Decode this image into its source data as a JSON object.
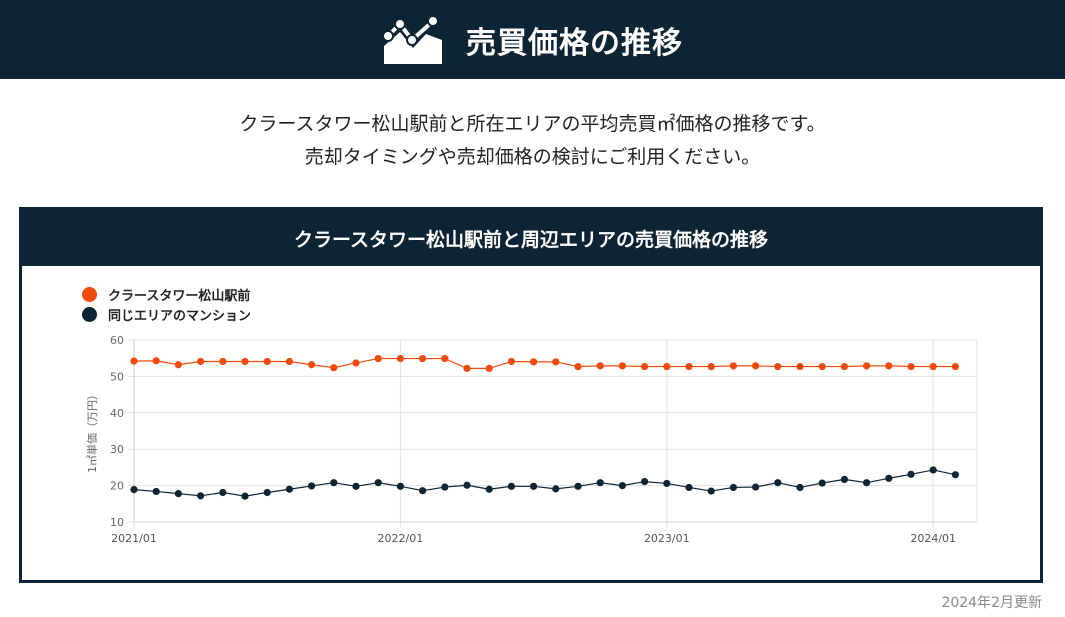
{
  "header": {
    "title": "売買価格の推移"
  },
  "intro": {
    "line1": "クラースタワー松山駅前と所在エリアの平均売買㎡価格の推移です。",
    "line2": "売却タイミングや売却価格の検討にご利用ください。"
  },
  "card": {
    "title": "クラースタワー松山駅前と周辺エリアの売買価格の推移"
  },
  "updated": "2024年2月更新",
  "colors": {
    "navy": "#0c2433",
    "orange": "#f04b0c",
    "grid": "#e2e2e2"
  },
  "chart_data": {
    "type": "line",
    "ylabel": "1㎡単価（万円）",
    "ylim": [
      10,
      60
    ],
    "yticks": [
      10,
      20,
      30,
      40,
      50,
      60
    ],
    "xtick_labels": [
      "2021/01",
      "2022/01",
      "2023/01",
      "2024/01"
    ],
    "x": [
      "2021/01",
      "2021/02",
      "2021/03",
      "2021/04",
      "2021/05",
      "2021/06",
      "2021/07",
      "2021/08",
      "2021/09",
      "2021/10",
      "2021/11",
      "2021/12",
      "2022/01",
      "2022/02",
      "2022/03",
      "2022/04",
      "2022/05",
      "2022/06",
      "2022/07",
      "2022/08",
      "2022/09",
      "2022/10",
      "2022/11",
      "2022/12",
      "2023/01",
      "2023/02",
      "2023/03",
      "2023/04",
      "2023/05",
      "2023/06",
      "2023/07",
      "2023/08",
      "2023/09",
      "2023/10",
      "2023/11",
      "2023/12",
      "2024/01",
      "2024/02"
    ],
    "legend_position": "top-left",
    "grid": true,
    "series": [
      {
        "name": "クラースタワー松山駅前",
        "color": "#f04b0c",
        "values": [
          54.2,
          54.3,
          53.2,
          54.1,
          54.1,
          54.1,
          54.1,
          54.1,
          53.2,
          52.4,
          53.7,
          54.9,
          54.9,
          54.9,
          54.9,
          52.2,
          52.2,
          54.1,
          54.0,
          54.0,
          52.7,
          52.9,
          52.9,
          52.7,
          52.7,
          52.7,
          52.7,
          52.9,
          52.9,
          52.7,
          52.7,
          52.7,
          52.7,
          52.9,
          52.9,
          52.7,
          52.7,
          52.7
        ]
      },
      {
        "name": "同じエリアのマンション",
        "color": "#0c2433",
        "values": [
          18.9,
          18.4,
          17.8,
          17.2,
          18.1,
          17.1,
          18.1,
          19.0,
          19.9,
          20.8,
          19.8,
          20.8,
          19.8,
          18.6,
          19.6,
          20.1,
          19.0,
          19.8,
          19.8,
          19.1,
          19.8,
          20.8,
          20.0,
          21.1,
          20.6,
          19.5,
          18.5,
          19.5,
          19.6,
          20.8,
          19.5,
          20.7,
          21.7,
          20.8,
          22.0,
          23.1,
          24.3,
          23.0
        ]
      }
    ]
  }
}
